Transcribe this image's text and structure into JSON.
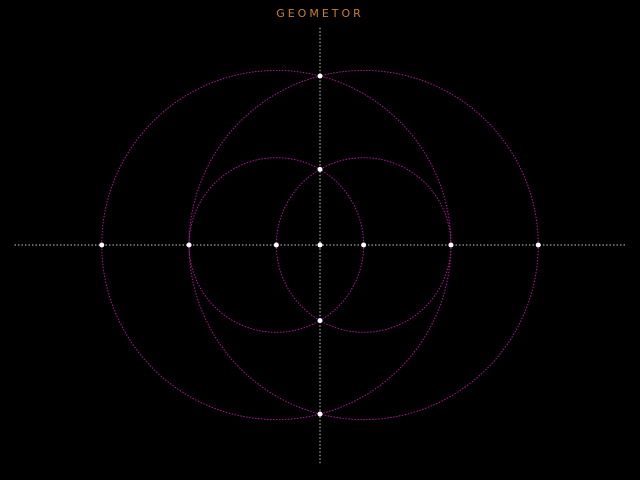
{
  "title": "GEOMETOR",
  "colors": {
    "background": "#000000",
    "title": "#c8802e",
    "lines": "#cccccc",
    "circles": "#b0139a",
    "points": "#ffffff"
  },
  "construction": {
    "unit": 1,
    "lines": [
      {
        "id": "horizontal-axis",
        "from": [
          -3.5,
          0
        ],
        "to": [
          3.5,
          0
        ]
      },
      {
        "id": "vertical-axis",
        "from": [
          0,
          -2.5
        ],
        "to": [
          0,
          2.5
        ]
      }
    ],
    "circles": [
      {
        "id": "small-left",
        "center": [
          -0.5,
          0
        ],
        "radius": 1
      },
      {
        "id": "small-right",
        "center": [
          0.5,
          0
        ],
        "radius": 1
      },
      {
        "id": "large-left",
        "center": [
          -0.5,
          0
        ],
        "radius": 2
      },
      {
        "id": "large-right",
        "center": [
          0.5,
          0
        ],
        "radius": 2
      }
    ],
    "points": [
      [
        -2.5,
        0
      ],
      [
        -1.5,
        0
      ],
      [
        -0.5,
        0
      ],
      [
        0,
        0
      ],
      [
        0.5,
        0
      ],
      [
        1.5,
        0
      ],
      [
        2.5,
        0
      ],
      [
        0,
        0.866
      ],
      [
        0,
        -0.866
      ],
      [
        0,
        1.936
      ],
      [
        0,
        -1.936
      ]
    ]
  }
}
